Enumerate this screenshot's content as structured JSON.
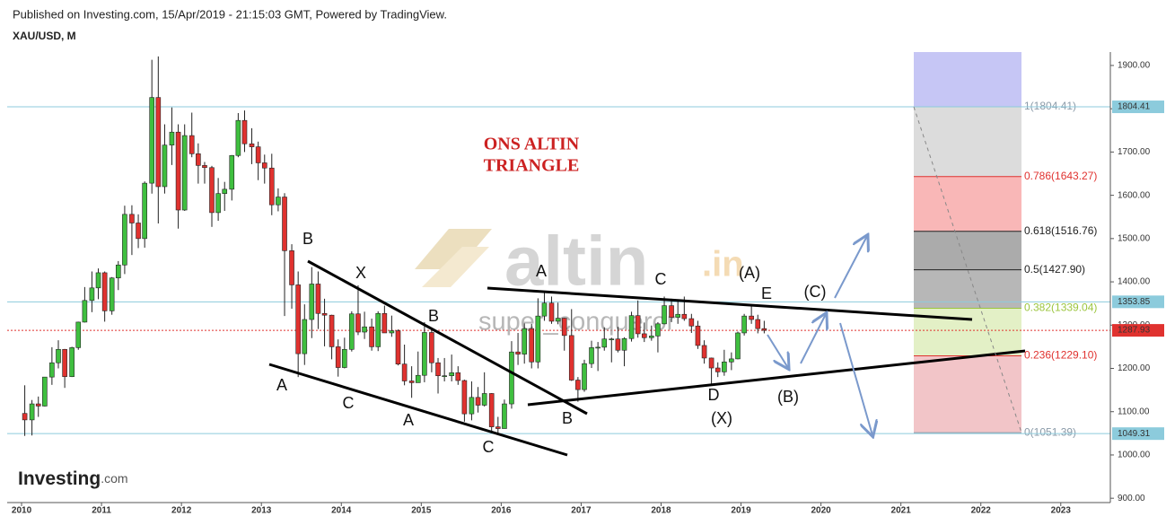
{
  "header": {
    "published": "Published on Investing.com, 15/Apr/2019 - 21:15:03 GMT, Powered by TradingView.",
    "symbol": "XAU/USD, M"
  },
  "logo": {
    "name": "Investing",
    "suffix": ".com"
  },
  "watermark": {
    "brand": "altin",
    "domain": ".in",
    "author": "super_conqueror"
  },
  "chart_data": {
    "type": "candlestick",
    "title": "ONS ALTIN",
    "subtitle": "TRIANGLE",
    "up_color": "#3fbf3f",
    "down_color": "#e0322f",
    "xlim": [
      2009.82,
      2023.62
    ],
    "xticks": [
      2010,
      2011,
      2012,
      2013,
      2014,
      2015,
      2016,
      2017,
      2018,
      2019,
      2020,
      2021,
      2022,
      2023
    ],
    "ylim": [
      890,
      1931
    ],
    "yticks": [
      {
        "value": 1900,
        "label": "1900.00"
      },
      {
        "value": 1800,
        "label": "1800.00"
      },
      {
        "value": 1700,
        "label": "1700.00"
      },
      {
        "value": 1600,
        "label": "1600.00"
      },
      {
        "value": 1500,
        "label": "1500.00"
      },
      {
        "value": 1400,
        "label": "1400.00"
      },
      {
        "value": 1300,
        "label": "1300.00"
      },
      {
        "value": 1200,
        "label": "1200.00"
      },
      {
        "value": 1100,
        "label": "1100.00"
      },
      {
        "value": 1000,
        "label": "1000.00"
      },
      {
        "value": 900,
        "label": "900.00"
      }
    ],
    "x": [
      2010.04,
      2010.13,
      2010.21,
      2010.29,
      2010.38,
      2010.46,
      2010.54,
      2010.63,
      2010.71,
      2010.79,
      2010.88,
      2010.96,
      2011.04,
      2011.13,
      2011.21,
      2011.29,
      2011.38,
      2011.46,
      2011.54,
      2011.63,
      2011.71,
      2011.79,
      2011.88,
      2011.96,
      2012.04,
      2012.13,
      2012.21,
      2012.29,
      2012.38,
      2012.46,
      2012.54,
      2012.63,
      2012.71,
      2012.79,
      2012.88,
      2012.96,
      2013.04,
      2013.13,
      2013.21,
      2013.29,
      2013.38,
      2013.46,
      2013.54,
      2013.63,
      2013.71,
      2013.79,
      2013.88,
      2013.96,
      2014.04,
      2014.13,
      2014.21,
      2014.29,
      2014.38,
      2014.46,
      2014.54,
      2014.63,
      2014.71,
      2014.79,
      2014.88,
      2014.96,
      2015.04,
      2015.13,
      2015.21,
      2015.29,
      2015.38,
      2015.46,
      2015.54,
      2015.63,
      2015.71,
      2015.79,
      2015.88,
      2015.96,
      2016.04,
      2016.13,
      2016.21,
      2016.29,
      2016.38,
      2016.46,
      2016.54,
      2016.63,
      2016.71,
      2016.79,
      2016.88,
      2016.96,
      2017.04,
      2017.13,
      2017.21,
      2017.29,
      2017.38,
      2017.46,
      2017.54,
      2017.63,
      2017.71,
      2017.79,
      2017.88,
      2017.96,
      2018.04,
      2018.13,
      2018.21,
      2018.29,
      2018.38,
      2018.46,
      2018.54,
      2018.63,
      2018.71,
      2018.79,
      2018.88,
      2018.96,
      2019.04,
      2019.13,
      2019.21,
      2019.29
    ],
    "open": [
      1096,
      1081,
      1118,
      1113,
      1180,
      1213,
      1244,
      1181,
      1248,
      1307,
      1357,
      1386,
      1421,
      1333,
      1409,
      1439,
      1556,
      1536,
      1500,
      1628,
      1826,
      1620,
      1716,
      1746,
      1566,
      1738,
      1696,
      1669,
      1664,
      1560,
      1604,
      1614,
      1692,
      1773,
      1719,
      1712,
      1675,
      1663,
      1578,
      1596,
      1472,
      1393,
      1234,
      1313,
      1395,
      1327,
      1323,
      1250,
      1202,
      1244,
      1326,
      1284,
      1296,
      1250,
      1327,
      1282,
      1287,
      1210,
      1171,
      1167,
      1184,
      1283,
      1213,
      1183,
      1183,
      1190,
      1172,
      1095,
      1133,
      1115,
      1142,
      1065,
      1061,
      1118,
      1238,
      1233,
      1292,
      1215,
      1321,
      1351,
      1309,
      1316,
      1276,
      1173,
      1151,
      1211,
      1248,
      1249,
      1268,
      1268,
      1242,
      1269,
      1322,
      1280,
      1271,
      1275,
      1303,
      1345,
      1318,
      1325,
      1315,
      1298,
      1253,
      1224,
      1201,
      1192,
      1215,
      1222,
      1282,
      1321,
      1313,
      1292
    ],
    "high": [
      1161,
      1127,
      1135,
      1180,
      1249,
      1265,
      1245,
      1250,
      1308,
      1388,
      1424,
      1431,
      1424,
      1411,
      1448,
      1576,
      1577,
      1556,
      1632,
      1913,
      1921,
      1764,
      1803,
      1764,
      1764,
      1791,
      1720,
      1677,
      1668,
      1640,
      1631,
      1693,
      1790,
      1796,
      1755,
      1724,
      1694,
      1696,
      1616,
      1605,
      1487,
      1424,
      1348,
      1434,
      1424,
      1361,
      1324,
      1267,
      1271,
      1332,
      1392,
      1331,
      1315,
      1332,
      1345,
      1322,
      1290,
      1255,
      1205,
      1239,
      1307,
      1289,
      1224,
      1224,
      1232,
      1205,
      1174,
      1170,
      1157,
      1191,
      1143,
      1088,
      1128,
      1263,
      1282,
      1304,
      1303,
      1362,
      1375,
      1366,
      1352,
      1317,
      1337,
      1180,
      1220,
      1264,
      1261,
      1295,
      1271,
      1296,
      1272,
      1331,
      1357,
      1306,
      1299,
      1307,
      1366,
      1361,
      1356,
      1366,
      1326,
      1310,
      1265,
      1225,
      1214,
      1243,
      1237,
      1285,
      1326,
      1346,
      1324,
      1310
    ],
    "low": [
      1044,
      1045,
      1088,
      1112,
      1162,
      1200,
      1155,
      1180,
      1243,
      1306,
      1330,
      1360,
      1308,
      1324,
      1381,
      1418,
      1462,
      1478,
      1479,
      1604,
      1535,
      1604,
      1670,
      1523,
      1564,
      1688,
      1627,
      1627,
      1527,
      1541,
      1564,
      1588,
      1688,
      1700,
      1672,
      1635,
      1627,
      1554,
      1563,
      1321,
      1338,
      1180,
      1208,
      1270,
      1291,
      1251,
      1221,
      1181,
      1200,
      1239,
      1277,
      1268,
      1241,
      1240,
      1282,
      1273,
      1207,
      1161,
      1132,
      1167,
      1168,
      1191,
      1142,
      1170,
      1170,
      1162,
      1077,
      1080,
      1098,
      1112,
      1053,
      1046,
      1062,
      1107,
      1208,
      1211,
      1200,
      1200,
      1310,
      1303,
      1302,
      1241,
      1171,
      1123,
      1146,
      1201,
      1194,
      1241,
      1214,
      1237,
      1205,
      1262,
      1271,
      1261,
      1264,
      1237,
      1302,
      1307,
      1303,
      1310,
      1282,
      1245,
      1211,
      1160,
      1180,
      1183,
      1196,
      1221,
      1276,
      1303,
      1281,
      1281
    ],
    "close": [
      1081,
      1118,
      1113,
      1180,
      1213,
      1244,
      1181,
      1248,
      1307,
      1357,
      1386,
      1421,
      1333,
      1409,
      1439,
      1556,
      1536,
      1500,
      1628,
      1826,
      1620,
      1716,
      1746,
      1566,
      1738,
      1696,
      1669,
      1664,
      1560,
      1604,
      1614,
      1692,
      1773,
      1719,
      1712,
      1675,
      1663,
      1578,
      1596,
      1472,
      1393,
      1234,
      1313,
      1395,
      1327,
      1323,
      1250,
      1202,
      1244,
      1326,
      1284,
      1296,
      1250,
      1327,
      1282,
      1287,
      1210,
      1171,
      1167,
      1184,
      1283,
      1213,
      1183,
      1183,
      1190,
      1172,
      1095,
      1133,
      1115,
      1142,
      1065,
      1061,
      1118,
      1238,
      1233,
      1292,
      1215,
      1321,
      1351,
      1309,
      1316,
      1276,
      1173,
      1151,
      1211,
      1248,
      1249,
      1268,
      1268,
      1242,
      1269,
      1322,
      1280,
      1271,
      1275,
      1303,
      1345,
      1318,
      1325,
      1315,
      1298,
      1253,
      1224,
      1201,
      1192,
      1215,
      1222,
      1282,
      1321,
      1313,
      1292,
      1288
    ],
    "price_levels": [
      {
        "value": 1804.41,
        "color": "#8ccbdc",
        "line": "solid"
      },
      {
        "value": 1353.85,
        "color": "#8ccbdc",
        "line": "solid"
      },
      {
        "value": 1287.93,
        "color": "#e0322f",
        "line": "dotted"
      },
      {
        "value": 1049.31,
        "color": "#8ccbdc",
        "line": "solid"
      }
    ],
    "fib_top_color": "#c6c6f5",
    "fib_levels": [
      {
        "value": 1804.41,
        "label": "1(1804.41)",
        "color": "#8a9aa8",
        "zone_color": "#dcdcdc"
      },
      {
        "value": 1643.27,
        "label": "0.786(1643.27)",
        "color": "#e0322f",
        "zone_color": "#f9b7b7"
      },
      {
        "value": 1516.76,
        "label": "0.618(1516.76)",
        "color": "#222222",
        "zone_color": "#ababab"
      },
      {
        "value": 1427.9,
        "label": "0.5(1427.90)",
        "color": "#222222",
        "zone_color": "#b7b7b7"
      },
      {
        "value": 1339.04,
        "label": "0.382(1339.04)",
        "color": "#9bc53d",
        "zone_color": "#e3f0c6"
      },
      {
        "value": 1229.1,
        "label": "0.236(1229.10)",
        "color": "#e0322f",
        "zone_color": "#f2c5c8"
      },
      {
        "value": 1051.39,
        "label": "0(1051.39)",
        "color": "#8a9aa8"
      }
    ],
    "wave_labels": [
      "B",
      "X",
      "B",
      "A",
      "C",
      "A",
      "C",
      "B",
      "A",
      "C",
      "(A)",
      "E",
      "(C)",
      "D",
      "(X)",
      "(B)"
    ]
  }
}
